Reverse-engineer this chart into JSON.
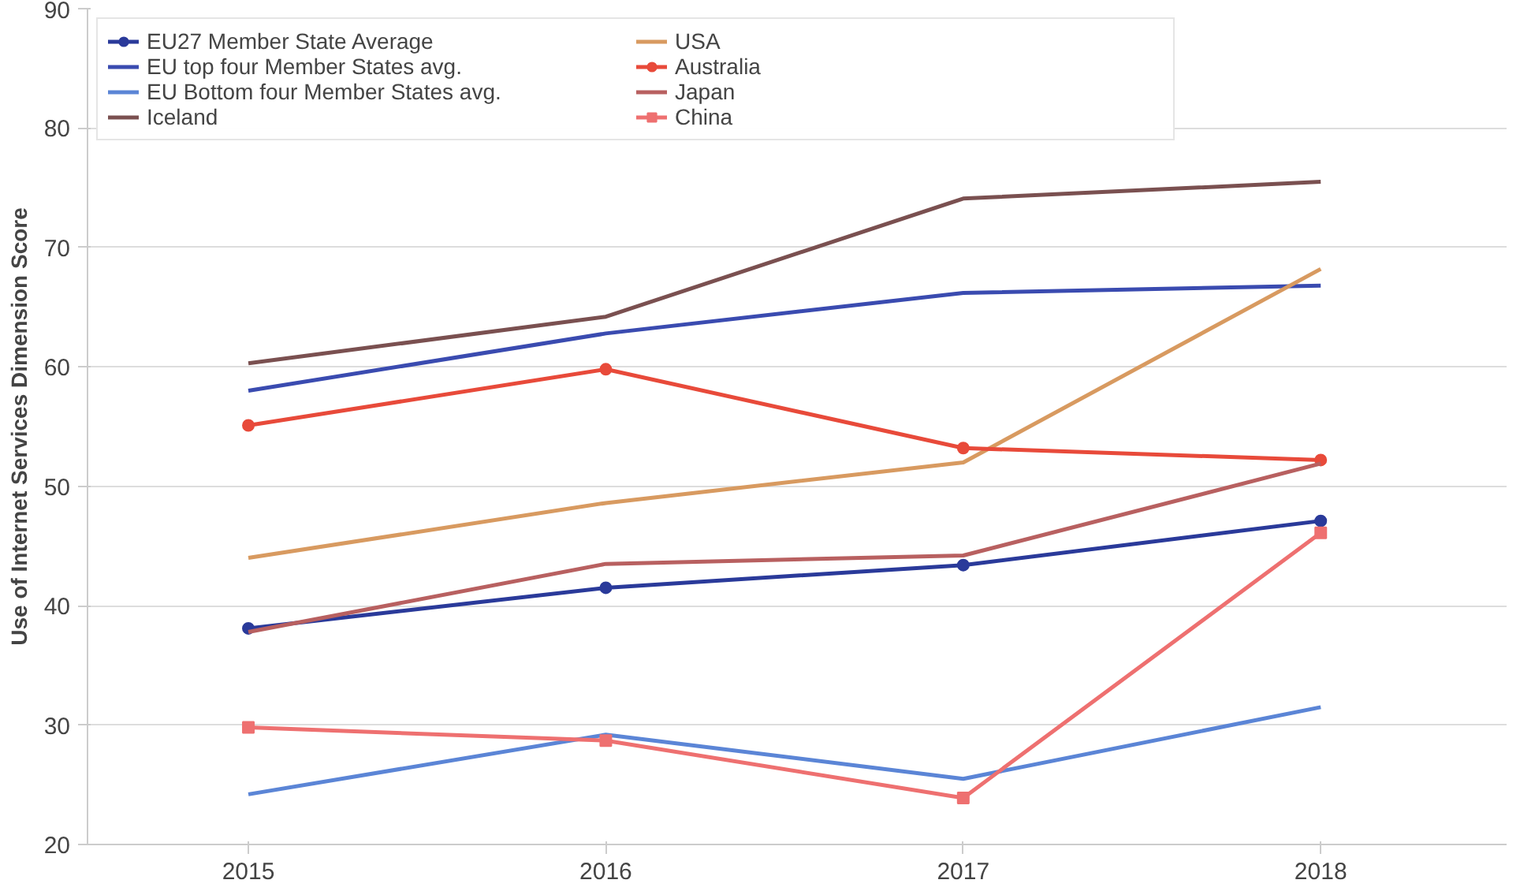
{
  "chart_data": {
    "type": "line",
    "ylabel": "Use of Internet Services Dimension Score",
    "x": [
      2015,
      2016,
      2017,
      2018
    ],
    "xlim": [
      2014.55,
      2018.52
    ],
    "xticks": [
      2015,
      2016,
      2017,
      2018
    ],
    "ylim": [
      20,
      90
    ],
    "yticks": [
      20,
      30,
      40,
      50,
      60,
      70,
      80,
      90
    ],
    "grid": "y",
    "legend": "top left",
    "series": [
      {
        "name": "EU27 Member State Average",
        "color": "#2a3a9a",
        "marker": "circle",
        "values": [
          38.1,
          41.5,
          43.4,
          47.1
        ]
      },
      {
        "name": "EU top four Member States avg.",
        "color": "#3a4bb0",
        "marker": "none",
        "values": [
          58,
          62.8,
          66.2,
          66.8
        ]
      },
      {
        "name": "EU Bottom four Member States avg.",
        "color": "#5b85d6",
        "marker": "none",
        "values": [
          24.2,
          29.2,
          25.5,
          31.5
        ]
      },
      {
        "name": "Iceland",
        "color": "#7a5050",
        "marker": "none",
        "values": [
          60.3,
          64.2,
          74.1,
          75.5
        ]
      },
      {
        "name": "USA",
        "color": "#d89a60",
        "marker": "none",
        "values": [
          44,
          48.6,
          52,
          68.2
        ]
      },
      {
        "name": "Australia",
        "color": "#e84a3a",
        "marker": "circle",
        "values": [
          55.1,
          59.8,
          53.2,
          52.2
        ]
      },
      {
        "name": "Japan",
        "color": "#b86060",
        "marker": "none",
        "values": [
          37.8,
          43.5,
          44.2,
          51.9
        ]
      },
      {
        "name": "China",
        "color": "#ee7070",
        "marker": "square",
        "values": [
          29.8,
          28.7,
          23.9,
          46.1
        ]
      }
    ]
  }
}
